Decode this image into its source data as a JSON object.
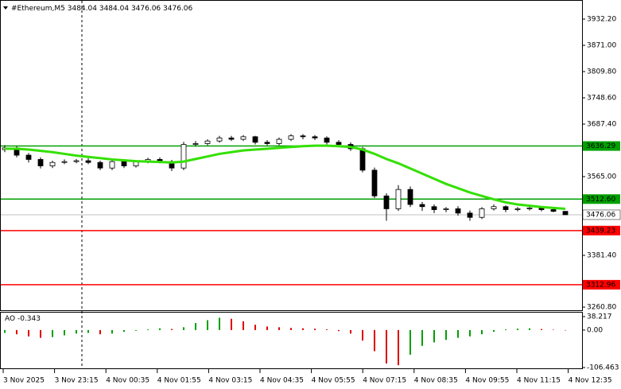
{
  "chart_data": [
    {
      "type": "candlestick",
      "symbol": "#Ethereum,M5",
      "open": [
        3628,
        3632,
        3615,
        3605,
        3590,
        3598,
        3600,
        3602,
        3598,
        3585,
        3600,
        3590,
        3600,
        3605,
        3600,
        3585,
        3640,
        3642,
        3648,
        3655,
        3652,
        3658,
        3645,
        3642,
        3652,
        3660,
        3658,
        3655,
        3645,
        3640,
        3630,
        3580,
        3520,
        3490,
        3535,
        3500,
        3495,
        3488,
        3490,
        3480,
        3470,
        3490,
        3495,
        3488,
        3490,
        3492,
        3488,
        3484.04
      ],
      "high": [
        3638,
        3636,
        3620,
        3610,
        3602,
        3605,
        3606,
        3608,
        3602,
        3604,
        3604,
        3603,
        3609,
        3610,
        3604,
        3646,
        3648,
        3652,
        3660,
        3660,
        3662,
        3660,
        3650,
        3656,
        3664,
        3664,
        3662,
        3659,
        3650,
        3645,
        3634,
        3586,
        3526,
        3545,
        3542,
        3506,
        3500,
        3494,
        3496,
        3486,
        3494,
        3500,
        3498,
        3494,
        3496,
        3496,
        3494,
        3484.04
      ],
      "low": [
        3622,
        3610,
        3598,
        3584,
        3585,
        3594,
        3596,
        3594,
        3580,
        3580,
        3585,
        3586,
        3596,
        3596,
        3578,
        3580,
        3636,
        3638,
        3644,
        3648,
        3648,
        3640,
        3638,
        3638,
        3648,
        3652,
        3650,
        3640,
        3636,
        3625,
        3575,
        3515,
        3462,
        3485,
        3494,
        3485,
        3480,
        3482,
        3474,
        3462,
        3466,
        3486,
        3482,
        3484,
        3486,
        3484,
        3482,
        3476.06
      ],
      "close": [
        3632,
        3615,
        3605,
        3590,
        3598,
        3600,
        3602,
        3598,
        3585,
        3600,
        3590,
        3600,
        3605,
        3600,
        3585,
        3640,
        3642,
        3648,
        3655,
        3652,
        3658,
        3645,
        3642,
        3652,
        3660,
        3658,
        3655,
        3645,
        3640,
        3630,
        3580,
        3520,
        3490,
        3535,
        3500,
        3495,
        3488,
        3490,
        3480,
        3470,
        3490,
        3495,
        3488,
        3490,
        3492,
        3488,
        3484.04,
        3476.06
      ],
      "ma": {
        "color": "#33e000",
        "values": [
          3630,
          3630,
          3628,
          3625,
          3622,
          3618,
          3614,
          3611,
          3608,
          3605,
          3603,
          3601,
          3600,
          3599,
          3598,
          3600,
          3606,
          3612,
          3618,
          3622,
          3626,
          3628,
          3630,
          3632,
          3634,
          3636,
          3637,
          3637,
          3636,
          3634,
          3628,
          3618,
          3606,
          3596,
          3584,
          3572,
          3560,
          3548,
          3538,
          3528,
          3520,
          3512,
          3505,
          3500,
          3497,
          3494,
          3492,
          3490
        ]
      },
      "ylim": [
        3251.6,
        3976.7
      ],
      "yticks": [
        {
          "value": 3932.2,
          "label": "3932.20"
        },
        {
          "value": 3871,
          "label": "3871.00"
        },
        {
          "value": 3809.8,
          "label": "3809.80"
        },
        {
          "value": 3748.6,
          "label": "3748.60"
        },
        {
          "value": 3687.4,
          "label": "3687.40"
        },
        {
          "value": 3565,
          "label": "3565.00"
        },
        {
          "value": 3381.4,
          "label": "3381.40"
        },
        {
          "value": 3260.8,
          "label": "3260.80"
        }
      ],
      "levels": [
        {
          "value": 3636.29,
          "color": "#00a000"
        },
        {
          "value": 3512.6,
          "label": "3512.60",
          "color": "#00a000"
        },
        {
          "value": 3439.23,
          "color": "#ff0000"
        },
        {
          "value": 3312.96,
          "color": "#ff0000"
        }
      ],
      "current_price": 3476.06,
      "time_labels": [
        "3 Nov 2025",
        "3 Nov 23:15",
        "4 Nov 00:35",
        "4 Nov 01:55",
        "4 Nov 03:15",
        "4 Nov 04:35",
        "4 Nov 05:55",
        "4 Nov 07:15",
        "4 Nov 08:35",
        "4 Nov 09:55",
        "4 Nov 11:15",
        "4 Nov 12:35"
      ]
    },
    {
      "type": "bar",
      "name": "AO",
      "up_color": "#00a000",
      "down_color": "#e00000",
      "values": [
        -8,
        -12,
        -18,
        -22,
        -20,
        -15,
        -10,
        -8,
        -12,
        -10,
        -5,
        -2,
        2,
        5,
        3,
        8,
        20,
        28,
        35,
        32,
        25,
        15,
        10,
        8,
        6,
        5,
        4,
        2,
        -3,
        -10,
        -30,
        -60,
        -95,
        -100,
        -70,
        -45,
        -35,
        -28,
        -22,
        -18,
        -12,
        -5,
        2,
        4,
        5,
        3,
        1,
        -0.343
      ],
      "ylim": [
        -106.463,
        38.217
      ],
      "yticks": [
        38.217,
        {
          "value": 0,
          "label": "0.00"
        },
        -106.463
      ]
    }
  ]
}
